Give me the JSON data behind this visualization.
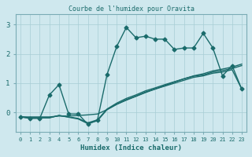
{
  "title": "Courbe de l'humidex pour Oravita",
  "xlabel": "Humidex (Indice chaleur)",
  "xlim_min": -0.5,
  "xlim_max": 23.5,
  "ylim_min": -0.65,
  "ylim_max": 3.35,
  "xticks": [
    0,
    1,
    2,
    3,
    4,
    5,
    6,
    7,
    8,
    9,
    10,
    11,
    12,
    13,
    14,
    15,
    16,
    17,
    18,
    19,
    20,
    21,
    22,
    23
  ],
  "yticks": [
    0,
    1,
    2,
    3
  ],
  "bg_color": "#cfe8ee",
  "grid_color": "#a8cdd5",
  "line_color": "#1a6b6b",
  "x": [
    0,
    1,
    2,
    3,
    4,
    5,
    6,
    7,
    8,
    9,
    10,
    11,
    12,
    13,
    14,
    15,
    16,
    17,
    18,
    19,
    20,
    21,
    22,
    23
  ],
  "y_main": [
    -0.15,
    -0.2,
    -0.2,
    0.6,
    0.95,
    -0.05,
    -0.05,
    -0.4,
    -0.25,
    1.3,
    2.25,
    2.9,
    2.55,
    2.6,
    2.5,
    2.5,
    2.15,
    2.2,
    2.2,
    2.7,
    2.2,
    1.25,
    1.6,
    0.8
  ],
  "y_trend1": [
    -0.15,
    -0.15,
    -0.15,
    -0.15,
    -0.12,
    -0.12,
    -0.1,
    -0.08,
    -0.05,
    0.1,
    0.28,
    0.42,
    0.55,
    0.68,
    0.8,
    0.92,
    1.04,
    1.15,
    1.25,
    1.32,
    1.42,
    1.48,
    1.55,
    1.65
  ],
  "y_trend2": [
    -0.15,
    -0.18,
    -0.18,
    -0.18,
    -0.1,
    -0.15,
    -0.2,
    -0.35,
    -0.25,
    0.12,
    0.32,
    0.48,
    0.6,
    0.74,
    0.84,
    0.95,
    1.05,
    1.15,
    1.24,
    1.28,
    1.38,
    1.43,
    1.5,
    1.6
  ],
  "y_trend3": [
    -0.15,
    -0.18,
    -0.18,
    -0.18,
    -0.1,
    -0.16,
    -0.22,
    -0.38,
    -0.28,
    0.1,
    0.28,
    0.44,
    0.56,
    0.7,
    0.8,
    0.9,
    1.0,
    1.1,
    1.2,
    1.25,
    1.34,
    1.38,
    1.46,
    0.8
  ]
}
